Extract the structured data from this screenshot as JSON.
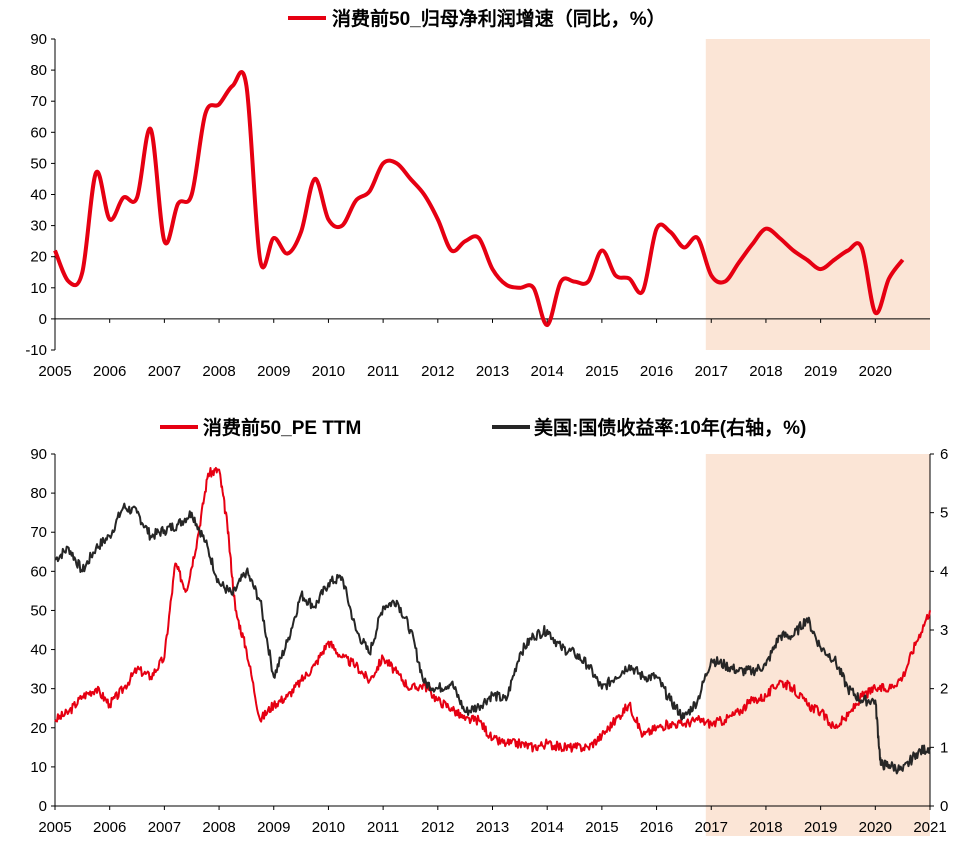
{
  "colors": {
    "red": "#e60012",
    "black": "#262626",
    "highlight": "#fbe5d6"
  },
  "chart_data": [
    {
      "type": "line",
      "legend": [
        "消费前50_归母净利润增速（同比，%）"
      ],
      "legend_placement": "top-center",
      "x_ticks": [
        "2005",
        "2006",
        "2007",
        "2008",
        "2009",
        "2010",
        "2011",
        "2012",
        "2013",
        "2014",
        "2015",
        "2016",
        "2017",
        "2018",
        "2019",
        "2020"
      ],
      "y_ticks": [
        "90",
        "80",
        "70",
        "60",
        "50",
        "40",
        "30",
        "20",
        "10",
        "0",
        "-10"
      ],
      "ylim": [
        -10,
        90
      ],
      "xlim": [
        2005.0,
        2021.0
      ],
      "grid": false,
      "highlight_range": [
        2016.9,
        2021.0
      ],
      "series": [
        {
          "name": "消费前50_归母净利润增速（同比，%）",
          "color": "#e60012",
          "x": [
            2005.0,
            2005.25,
            2005.5,
            2005.75,
            2006.0,
            2006.25,
            2006.5,
            2006.75,
            2007.0,
            2007.25,
            2007.5,
            2007.75,
            2008.0,
            2008.25,
            2008.5,
            2008.75,
            2009.0,
            2009.25,
            2009.5,
            2009.75,
            2010.0,
            2010.25,
            2010.5,
            2010.75,
            2011.0,
            2011.25,
            2011.5,
            2011.75,
            2012.0,
            2012.25,
            2012.5,
            2012.75,
            2013.0,
            2013.25,
            2013.5,
            2013.75,
            2014.0,
            2014.25,
            2014.5,
            2014.75,
            2015.0,
            2015.25,
            2015.5,
            2015.75,
            2016.0,
            2016.25,
            2016.5,
            2016.75,
            2017.0,
            2017.25,
            2017.5,
            2017.75,
            2018.0,
            2018.25,
            2018.5,
            2018.75,
            2019.0,
            2019.25,
            2019.5,
            2019.75,
            2020.0,
            2020.25,
            2020.5
          ],
          "y": [
            22,
            12,
            15,
            47,
            32,
            39,
            39,
            61,
            25,
            37,
            40,
            66,
            69,
            75,
            75,
            19,
            26,
            21,
            28,
            45,
            32,
            30,
            38,
            41,
            50,
            50,
            45,
            40,
            32,
            22,
            25,
            26,
            16,
            11,
            10,
            10,
            -2,
            12,
            12,
            12,
            22,
            14,
            13,
            9,
            29,
            28,
            23,
            26,
            14,
            12,
            18,
            24,
            29,
            26,
            22,
            19,
            16,
            19,
            22,
            23,
            2,
            13,
            19
          ]
        }
      ]
    },
    {
      "type": "line",
      "legend": [
        "消费前50_PE TTM",
        "美国:国债收益率:10年(右轴，%)"
      ],
      "legend_placement": "top-center",
      "x_ticks": [
        "2005",
        "2006",
        "2007",
        "2008",
        "2009",
        "2010",
        "2011",
        "2012",
        "2013",
        "2014",
        "2015",
        "2016",
        "2017",
        "2018",
        "2019",
        "2020",
        "2021"
      ],
      "y_ticks": [
        "90",
        "80",
        "70",
        "60",
        "50",
        "40",
        "30",
        "20",
        "10",
        "0"
      ],
      "y2_ticks": [
        "6",
        "5",
        "4",
        "3",
        "2",
        "1",
        "0"
      ],
      "ylim": [
        0,
        90
      ],
      "y2lim": [
        0,
        6
      ],
      "xlim": [
        2005.0,
        2021.0
      ],
      "grid": false,
      "highlight_range": [
        2016.9,
        2021.0
      ],
      "series": [
        {
          "name": "消费前50_PE TTM",
          "axis": "left",
          "color": "#e60012",
          "x": [
            2005.0,
            2005.25,
            2005.5,
            2005.75,
            2006.0,
            2006.25,
            2006.5,
            2006.75,
            2007.0,
            2007.2,
            2007.4,
            2007.6,
            2007.8,
            2008.0,
            2008.15,
            2008.3,
            2008.5,
            2008.75,
            2009.0,
            2009.25,
            2009.5,
            2009.75,
            2010.0,
            2010.25,
            2010.5,
            2010.75,
            2011.0,
            2011.25,
            2011.5,
            2011.75,
            2012.0,
            2012.25,
            2012.5,
            2012.75,
            2013.0,
            2013.25,
            2013.5,
            2013.75,
            2014.0,
            2014.25,
            2014.5,
            2014.75,
            2015.0,
            2015.25,
            2015.5,
            2015.75,
            2016.0,
            2016.25,
            2016.5,
            2016.75,
            2017.0,
            2017.25,
            2017.5,
            2017.75,
            2018.0,
            2018.25,
            2018.5,
            2018.75,
            2019.0,
            2019.25,
            2019.5,
            2019.75,
            2020.0,
            2020.25,
            2020.5,
            2020.75,
            2021.0
          ],
          "y": [
            22,
            24,
            28,
            30,
            26,
            30,
            35,
            33,
            38,
            62,
            55,
            68,
            85,
            86,
            72,
            50,
            40,
            22,
            26,
            28,
            32,
            36,
            42,
            38,
            36,
            32,
            38,
            34,
            30,
            31,
            27,
            25,
            22,
            22,
            17,
            16,
            16,
            15,
            16,
            15,
            15,
            15,
            18,
            22,
            26,
            18,
            20,
            21,
            21,
            22,
            21,
            22,
            24,
            27,
            28,
            32,
            30,
            26,
            24,
            20,
            23,
            28,
            30,
            30,
            33,
            42,
            50
          ]
        },
        {
          "name": "美国:国债收益率:10年(右轴，%)",
          "axis": "right",
          "color": "#262626",
          "x": [
            2005.0,
            2005.25,
            2005.5,
            2005.75,
            2006.0,
            2006.25,
            2006.5,
            2006.75,
            2007.0,
            2007.25,
            2007.5,
            2007.75,
            2008.0,
            2008.25,
            2008.5,
            2008.75,
            2009.0,
            2009.25,
            2009.5,
            2009.75,
            2010.0,
            2010.25,
            2010.5,
            2010.75,
            2011.0,
            2011.25,
            2011.5,
            2011.75,
            2012.0,
            2012.25,
            2012.5,
            2012.75,
            2013.0,
            2013.25,
            2013.5,
            2013.75,
            2014.0,
            2014.25,
            2014.5,
            2014.75,
            2015.0,
            2015.25,
            2015.5,
            2015.75,
            2016.0,
            2016.25,
            2016.5,
            2016.75,
            2017.0,
            2017.25,
            2017.5,
            2017.75,
            2018.0,
            2018.25,
            2018.5,
            2018.75,
            2019.0,
            2019.25,
            2019.5,
            2019.75,
            2020.0,
            2020.1,
            2020.25,
            2020.5,
            2020.75,
            2021.0
          ],
          "y": [
            4.2,
            4.4,
            4.0,
            4.4,
            4.6,
            5.1,
            5.0,
            4.6,
            4.7,
            4.8,
            5.0,
            4.5,
            3.8,
            3.6,
            4.0,
            3.5,
            2.2,
            2.8,
            3.6,
            3.4,
            3.8,
            3.9,
            3.0,
            2.6,
            3.4,
            3.5,
            3.0,
            2.1,
            2.0,
            2.1,
            1.6,
            1.7,
            1.9,
            1.8,
            2.6,
            2.9,
            3.0,
            2.7,
            2.6,
            2.4,
            2.0,
            2.2,
            2.4,
            2.2,
            2.2,
            1.8,
            1.5,
            1.8,
            2.5,
            2.4,
            2.3,
            2.3,
            2.4,
            2.9,
            2.9,
            3.2,
            2.7,
            2.5,
            2.0,
            1.8,
            1.8,
            0.7,
            0.7,
            0.6,
            0.9,
            1.0
          ]
        }
      ]
    }
  ]
}
